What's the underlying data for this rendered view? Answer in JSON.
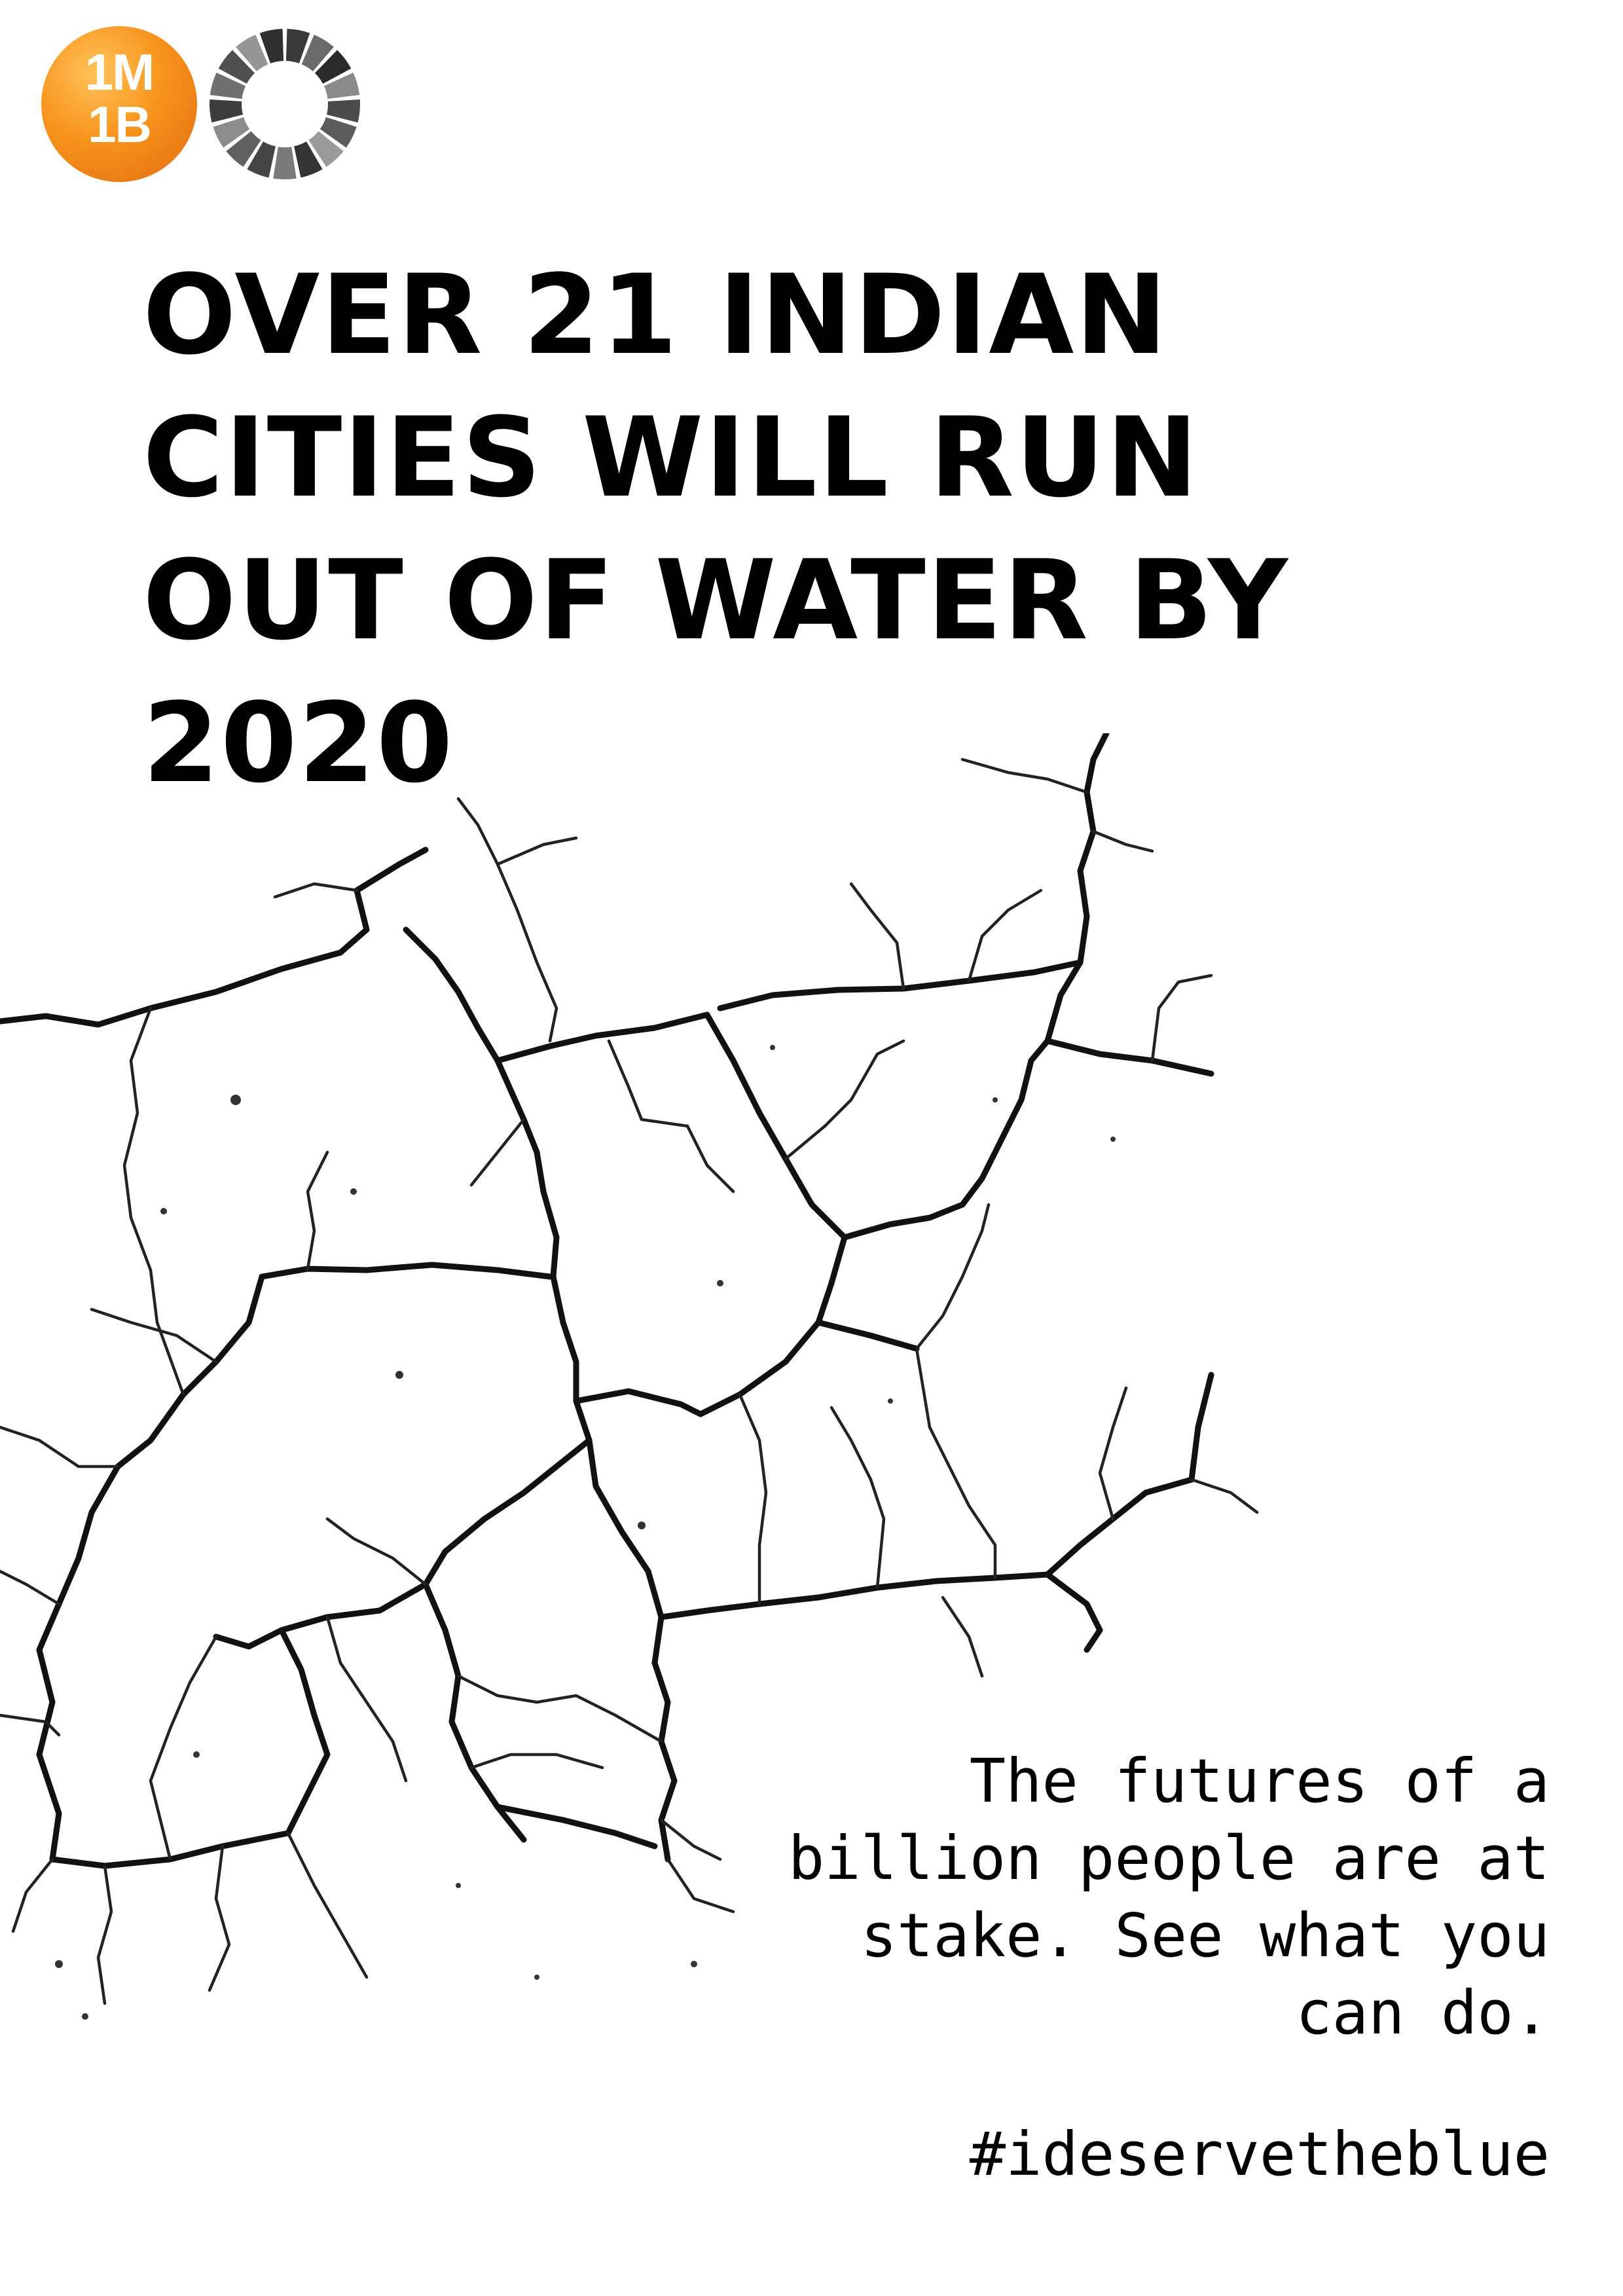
{
  "logos": {
    "primary": {
      "text_line1": "1M",
      "text_line2": "1B",
      "color": "#f7941d",
      "icon": "1m1b-logo-icon"
    },
    "secondary": {
      "icon": "sdg-wheel-logo-icon",
      "color": "#555555"
    }
  },
  "headline": "OVER 21 INDIAN\nCITIES WILL RUN\nOUT OF WATER BY\n2020",
  "tagline": "The futures of a\nbillion people are at\nstake. See what you\ncan do.",
  "hashtag": "#ideservetheblue",
  "illustration": {
    "icon": "cracked-earth-illustration",
    "color": "#111111"
  }
}
